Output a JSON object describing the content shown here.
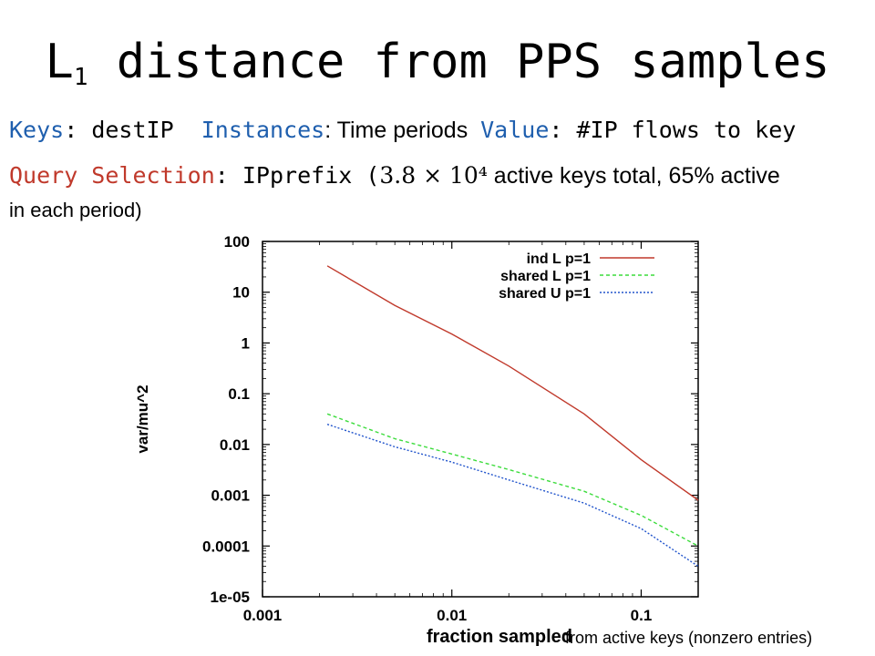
{
  "slide": {
    "title_main": "L",
    "title_sub": "1",
    "title_rest": " distance from PPS samples",
    "line1": {
      "keys_label": "Keys",
      "keys_value": ": destIP  ",
      "instances_label": "Instances",
      "instances_value": ": Time periods  ",
      "value_label": "Value",
      "value_value": ": #IP flows to key"
    },
    "line2": {
      "query_label": "Query Selection",
      "query_value": ": IPprefix (",
      "math": "3.8 × 10⁴",
      "rest": " active keys total, 65% active",
      "cont": "in each period)"
    },
    "caption": "from active keys (nonzero entries)"
  },
  "chart_data": {
    "type": "line",
    "xlabel": "fraction sampled",
    "ylabel": "var/mu^2",
    "xscale": "log",
    "yscale": "log",
    "xlim": [
      0.001,
      0.2
    ],
    "ylim": [
      1e-05,
      100
    ],
    "xticks": [
      "0.001",
      "0.01",
      "0.1"
    ],
    "xtick_values": [
      0.001,
      0.01,
      0.1
    ],
    "yticks": [
      "1e-05",
      "0.0001",
      "0.001",
      "0.01",
      "0.1",
      "1",
      "10",
      "100"
    ],
    "ytick_values": [
      1e-05,
      0.0001,
      0.001,
      0.01,
      0.1,
      1,
      10,
      100
    ],
    "legend_position": "top-right",
    "series": [
      {
        "name": "ind L p=1",
        "color": "#c0392b",
        "dash": "",
        "x": [
          0.0022,
          0.005,
          0.01,
          0.02,
          0.05,
          0.1,
          0.2
        ],
        "y": [
          33,
          5.5,
          1.5,
          0.35,
          0.04,
          0.005,
          0.0008
        ]
      },
      {
        "name": "shared L p=1",
        "color": "#3cdc3c",
        "dash": "4,3",
        "x": [
          0.0022,
          0.005,
          0.01,
          0.02,
          0.05,
          0.1,
          0.2
        ],
        "y": [
          0.04,
          0.013,
          0.0065,
          0.0032,
          0.0012,
          0.0004,
          0.0001
        ]
      },
      {
        "name": "shared U p=1",
        "color": "#2255cc",
        "dash": "2,2",
        "x": [
          0.0022,
          0.005,
          0.01,
          0.02,
          0.05,
          0.1,
          0.2
        ],
        "y": [
          0.025,
          0.009,
          0.0045,
          0.002,
          0.0007,
          0.00022,
          4e-05
        ]
      }
    ]
  }
}
